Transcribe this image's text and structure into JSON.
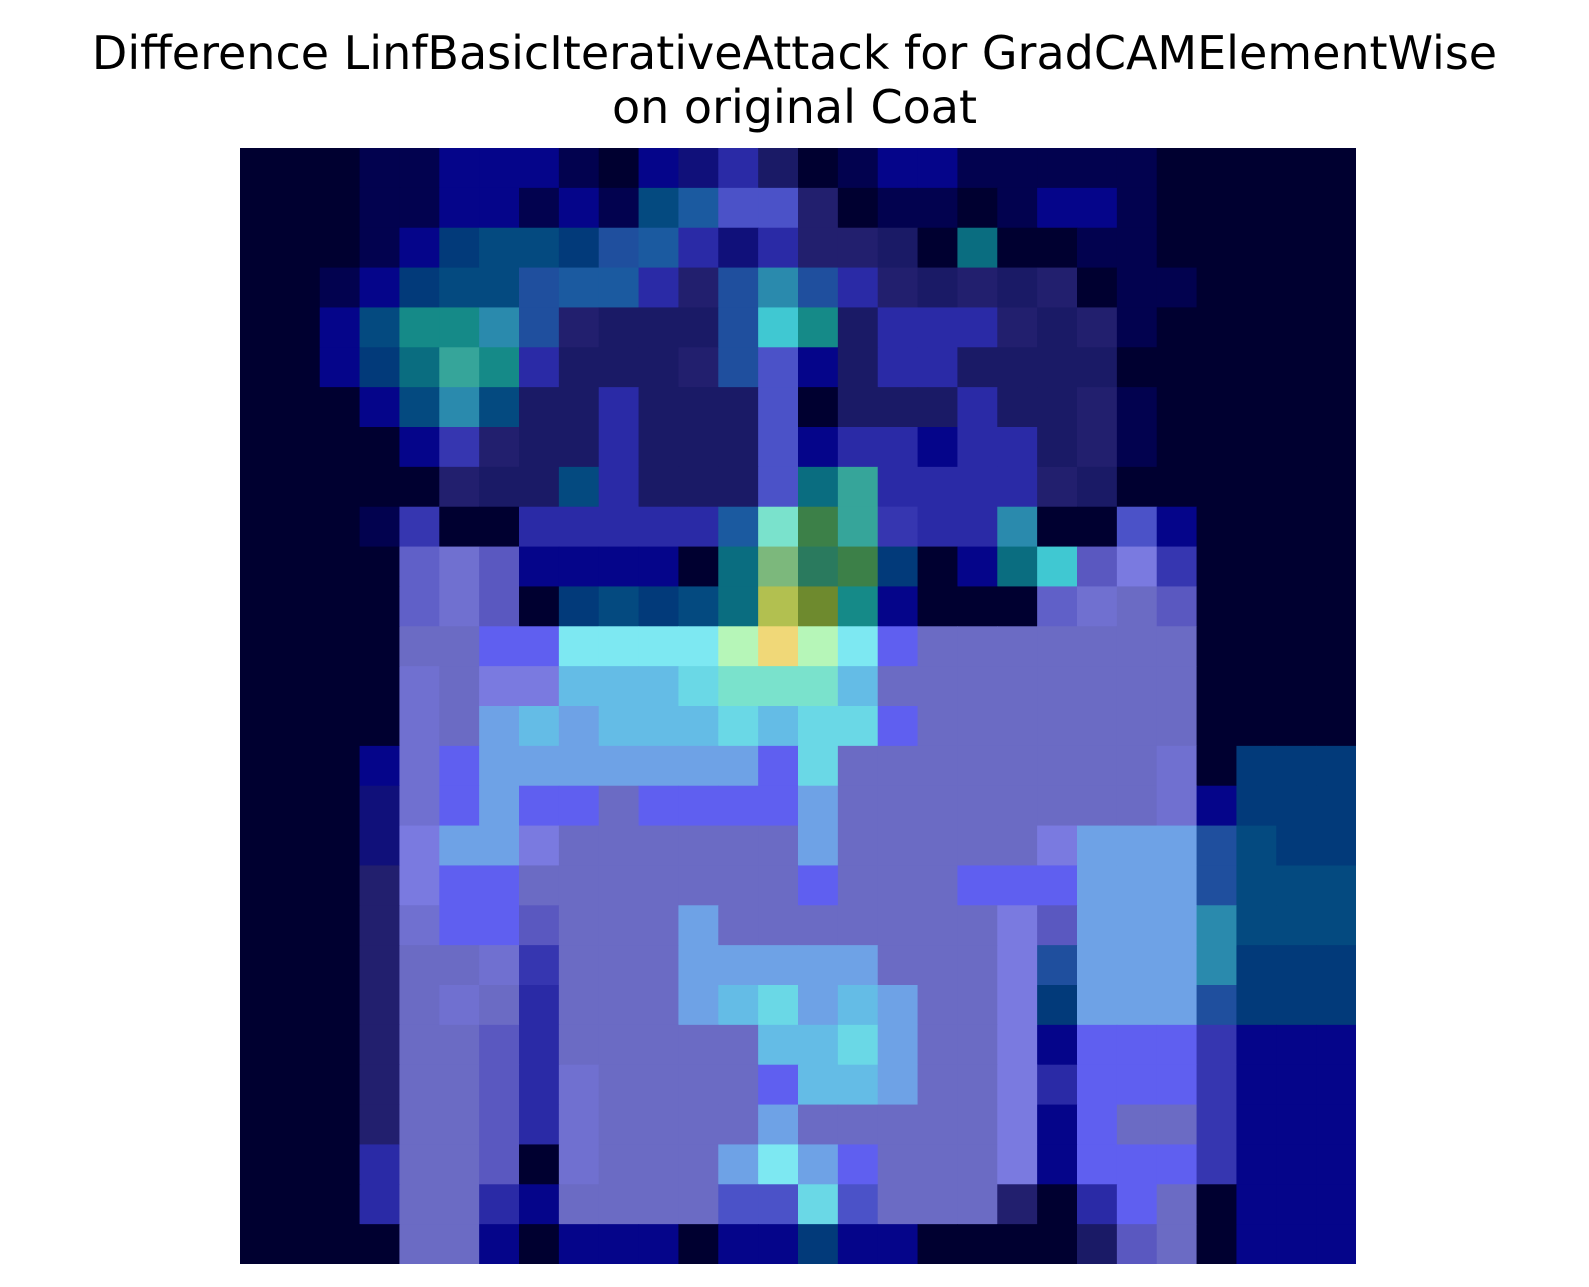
{
  "chart_data": {
    "type": "heatmap",
    "title_line1": "Difference LinfBasicIterativeAttack for GradCAMElementWise",
    "title_line2": "on original Coat",
    "rows": 28,
    "cols": 28,
    "axes_visible": false,
    "colorbar_visible": false,
    "palette": [
      "#000030",
      "#02024f",
      "#05058a",
      "#10107a",
      "#1a1a66",
      "#221f6e",
      "#2a2aa6",
      "#3636b0",
      "#023a7a",
      "#044a80",
      "#1f4f9e",
      "#1b5aa0",
      "#0a6d80",
      "#158a88",
      "#2a8aad",
      "#36a59a",
      "#40c8d2",
      "#4b52c8",
      "#5a58c0",
      "#6060c8",
      "#6b6bc4",
      "#7070d0",
      "#7a7ae0",
      "#5f5ff0",
      "#6ea2e6",
      "#64bce6",
      "#6ad8e6",
      "#7de8f2",
      "#7ae2cc",
      "#b6f6b8",
      "#f0d878",
      "#b2c050",
      "#6e8a2e",
      "#3c8048",
      "#7cb87c",
      "#2a7a5e"
    ],
    "cells": [
      [
        0,
        0,
        0,
        1,
        1,
        2,
        2,
        2,
        1,
        0,
        2,
        3,
        6,
        4,
        0,
        1,
        2,
        2,
        1,
        1,
        1,
        1,
        1,
        0,
        0,
        0,
        0,
        0
      ],
      [
        0,
        0,
        0,
        1,
        1,
        2,
        2,
        1,
        2,
        1,
        9,
        11,
        17,
        17,
        5,
        0,
        1,
        1,
        0,
        1,
        2,
        2,
        1,
        0,
        0,
        0,
        0,
        0
      ],
      [
        0,
        0,
        0,
        1,
        2,
        8,
        9,
        9,
        8,
        10,
        11,
        6,
        3,
        6,
        5,
        5,
        4,
        0,
        12,
        0,
        0,
        1,
        1,
        0,
        0,
        0,
        0,
        0
      ],
      [
        0,
        0,
        1,
        2,
        8,
        9,
        9,
        10,
        11,
        11,
        6,
        5,
        10,
        14,
        10,
        6,
        5,
        4,
        5,
        4,
        5,
        0,
        1,
        1,
        0,
        0,
        0,
        0
      ],
      [
        0,
        0,
        2,
        9,
        13,
        13,
        14,
        10,
        5,
        4,
        4,
        4,
        10,
        16,
        13,
        4,
        6,
        6,
        6,
        5,
        4,
        5,
        1,
        0,
        0,
        0,
        0,
        0
      ],
      [
        0,
        0,
        2,
        8,
        12,
        15,
        13,
        6,
        4,
        4,
        4,
        5,
        10,
        17,
        2,
        4,
        6,
        6,
        4,
        4,
        4,
        4,
        0,
        0,
        0,
        0,
        0,
        0
      ],
      [
        0,
        0,
        0,
        2,
        9,
        14,
        9,
        4,
        4,
        6,
        4,
        4,
        4,
        17,
        0,
        4,
        4,
        4,
        6,
        4,
        4,
        5,
        1,
        0,
        0,
        0,
        0,
        0
      ],
      [
        0,
        0,
        0,
        0,
        2,
        7,
        5,
        4,
        4,
        6,
        4,
        4,
        4,
        17,
        2,
        6,
        6,
        2,
        6,
        6,
        4,
        5,
        1,
        0,
        0,
        0,
        0,
        0
      ],
      [
        0,
        0,
        0,
        0,
        0,
        5,
        4,
        4,
        9,
        6,
        4,
        4,
        4,
        17,
        12,
        15,
        6,
        6,
        6,
        6,
        5,
        4,
        0,
        0,
        0,
        0,
        0,
        0
      ],
      [
        0,
        0,
        0,
        1,
        7,
        0,
        0,
        6,
        6,
        6,
        6,
        6,
        11,
        28,
        33,
        15,
        7,
        6,
        6,
        14,
        0,
        0,
        17,
        2,
        0,
        0,
        0,
        0
      ],
      [
        0,
        0,
        0,
        0,
        19,
        21,
        18,
        2,
        2,
        2,
        2,
        0,
        12,
        34,
        35,
        33,
        8,
        0,
        2,
        12,
        16,
        18,
        22,
        7,
        0,
        0,
        0,
        0
      ],
      [
        0,
        0,
        0,
        0,
        19,
        21,
        18,
        0,
        8,
        9,
        8,
        9,
        12,
        31,
        32,
        13,
        2,
        0,
        0,
        0,
        19,
        21,
        20,
        18,
        0,
        0,
        0,
        0
      ],
      [
        0,
        0,
        0,
        0,
        20,
        20,
        23,
        23,
        27,
        27,
        27,
        27,
        29,
        30,
        29,
        27,
        23,
        20,
        20,
        20,
        20,
        20,
        20,
        20,
        0,
        0,
        0,
        0
      ],
      [
        0,
        0,
        0,
        0,
        21,
        20,
        22,
        22,
        25,
        25,
        25,
        26,
        28,
        28,
        28,
        25,
        20,
        20,
        20,
        20,
        20,
        20,
        20,
        20,
        0,
        0,
        0,
        0
      ],
      [
        0,
        0,
        0,
        0,
        21,
        20,
        24,
        25,
        24,
        25,
        25,
        25,
        26,
        25,
        26,
        26,
        23,
        20,
        20,
        20,
        20,
        20,
        20,
        20,
        0,
        0,
        0,
        0
      ],
      [
        0,
        0,
        0,
        2,
        21,
        23,
        24,
        24,
        24,
        24,
        24,
        24,
        24,
        23,
        26,
        20,
        20,
        20,
        20,
        20,
        20,
        20,
        20,
        21,
        0,
        8,
        8,
        8
      ],
      [
        0,
        0,
        0,
        3,
        21,
        23,
        24,
        23,
        23,
        20,
        23,
        23,
        23,
        23,
        24,
        20,
        20,
        20,
        20,
        20,
        20,
        20,
        20,
        21,
        2,
        8,
        8,
        8
      ],
      [
        0,
        0,
        0,
        3,
        22,
        24,
        24,
        22,
        20,
        20,
        20,
        20,
        20,
        20,
        24,
        20,
        20,
        20,
        20,
        20,
        22,
        24,
        24,
        24,
        10,
        9,
        8,
        8
      ],
      [
        0,
        0,
        0,
        5,
        22,
        23,
        23,
        20,
        20,
        20,
        20,
        20,
        20,
        20,
        23,
        20,
        20,
        20,
        23,
        23,
        23,
        24,
        24,
        24,
        10,
        9,
        9,
        9
      ],
      [
        0,
        0,
        0,
        5,
        21,
        23,
        23,
        18,
        20,
        20,
        20,
        24,
        20,
        20,
        20,
        20,
        20,
        20,
        20,
        22,
        18,
        24,
        24,
        24,
        14,
        9,
        9,
        9
      ],
      [
        0,
        0,
        0,
        5,
        20,
        20,
        21,
        7,
        20,
        20,
        20,
        24,
        24,
        24,
        24,
        24,
        20,
        20,
        20,
        22,
        10,
        24,
        24,
        24,
        14,
        8,
        8,
        8
      ],
      [
        0,
        0,
        0,
        5,
        20,
        21,
        20,
        6,
        20,
        20,
        20,
        24,
        25,
        26,
        24,
        25,
        24,
        20,
        20,
        22,
        8,
        24,
        24,
        24,
        10,
        8,
        8,
        8
      ],
      [
        0,
        0,
        0,
        5,
        20,
        20,
        18,
        6,
        20,
        20,
        20,
        20,
        20,
        25,
        25,
        26,
        24,
        20,
        20,
        22,
        2,
        23,
        23,
        23,
        7,
        2,
        2,
        2
      ],
      [
        0,
        0,
        0,
        5,
        20,
        20,
        18,
        6,
        21,
        20,
        20,
        20,
        20,
        23,
        25,
        25,
        24,
        20,
        20,
        22,
        6,
        23,
        23,
        23,
        7,
        2,
        2,
        2
      ],
      [
        0,
        0,
        0,
        5,
        20,
        20,
        18,
        6,
        21,
        20,
        20,
        20,
        20,
        24,
        20,
        20,
        20,
        20,
        20,
        22,
        2,
        23,
        20,
        20,
        7,
        2,
        2,
        2
      ],
      [
        0,
        0,
        0,
        6,
        20,
        20,
        18,
        0,
        21,
        20,
        20,
        20,
        24,
        27,
        24,
        23,
        20,
        20,
        20,
        22,
        2,
        23,
        23,
        23,
        7,
        2,
        2,
        2
      ],
      [
        0,
        0,
        0,
        6,
        20,
        20,
        6,
        2,
        20,
        20,
        20,
        20,
        17,
        17,
        26,
        17,
        20,
        20,
        20,
        5,
        0,
        6,
        23,
        20,
        0,
        2,
        2,
        2
      ],
      [
        0,
        0,
        0,
        0,
        20,
        20,
        2,
        0,
        2,
        2,
        2,
        0,
        2,
        2,
        8,
        2,
        2,
        0,
        0,
        0,
        0,
        4,
        18,
        20,
        0,
        2,
        2,
        2
      ]
    ]
  }
}
